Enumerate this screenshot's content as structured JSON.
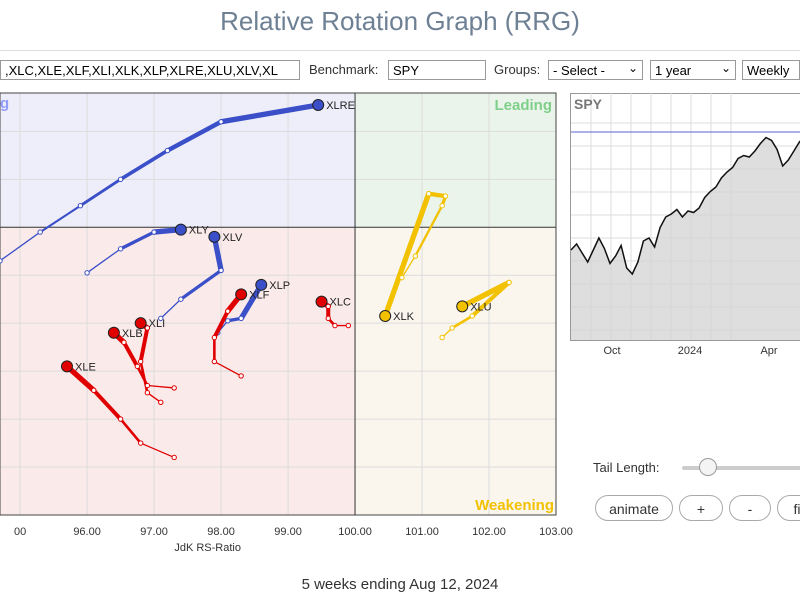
{
  "page": {
    "title": "Relative Rotation Graph (RRG)",
    "footer": "5 weeks ending Aug 12, 2024"
  },
  "controls": {
    "symbols_value": ",XLC,XLE,XLF,XLI,XLK,XLP,XLRE,XLU,XLV,XL",
    "benchmark_label": "Benchmark:",
    "benchmark_value": "SPY",
    "groups_label": "Groups:",
    "groups_value": "- Select -",
    "period_value": "1 year",
    "interval_value": "Weekly",
    "tail_length_label": "Tail Length:",
    "tail_length_fraction": 0.22,
    "animate_label": "animate",
    "plus_label": "+",
    "minus_label": "-",
    "fit_label": "fi"
  },
  "colors": {
    "blue": "#3a4fc8",
    "red": "#e00000",
    "yellow": "#f2c100",
    "leading_text": "#7fcf8a",
    "weakening_text": "#f2c100",
    "lagging_text": "#8f9bff"
  },
  "chart_data": [
    {
      "type": "scatter",
      "xlabel": "JdK RS-Ratio",
      "ylabel": "",
      "x_ticks": [
        "00",
        "96.00",
        "97.00",
        "98.00",
        "99.00",
        "100.00",
        "101.00",
        "102.00",
        "103.00"
      ],
      "xlim": [
        94.7,
        103.0
      ],
      "ylim": [
        94.0,
        102.8
      ],
      "quadrants": {
        "leading": "Leading",
        "weakening": "Weakening",
        "lagging": "g"
      },
      "series": [
        {
          "name": "XLRE",
          "color": "blue",
          "points": [
            [
              94.7,
              99.3
            ],
            [
              95.3,
              99.9
            ],
            [
              95.9,
              100.45
            ],
            [
              96.5,
              101.0
            ],
            [
              97.2,
              101.6
            ],
            [
              98.0,
              102.2
            ],
            [
              99.45,
              102.55
            ]
          ]
        },
        {
          "name": "XLY",
          "color": "blue",
          "points": [
            [
              96.0,
              99.05
            ],
            [
              96.5,
              99.55
            ],
            [
              97.0,
              99.9
            ],
            [
              97.4,
              99.95
            ]
          ]
        },
        {
          "name": "XLV",
          "color": "blue",
          "points": [
            [
              97.1,
              98.1
            ],
            [
              97.4,
              98.5
            ],
            [
              98.0,
              99.1
            ],
            [
              97.9,
              99.8
            ]
          ]
        },
        {
          "name": "XLP",
          "color": "blue",
          "points": [
            [
              97.95,
              97.8
            ],
            [
              98.1,
              98.05
            ],
            [
              98.3,
              98.1
            ],
            [
              98.6,
              98.8
            ]
          ]
        },
        {
          "name": "XLF",
          "color": "red",
          "points": [
            [
              98.3,
              96.9
            ],
            [
              97.9,
              97.2
            ],
            [
              97.9,
              97.7
            ],
            [
              98.1,
              98.25
            ],
            [
              98.3,
              98.6
            ]
          ]
        },
        {
          "name": "XLC",
          "color": "red",
          "points": [
            [
              99.9,
              97.95
            ],
            [
              99.7,
              97.95
            ],
            [
              99.6,
              98.1
            ],
            [
              99.6,
              98.35
            ],
            [
              99.5,
              98.45
            ]
          ]
        },
        {
          "name": "XLI",
          "color": "red",
          "points": [
            [
              97.1,
              96.35
            ],
            [
              96.9,
              96.55
            ],
            [
              96.8,
              97.2
            ],
            [
              96.9,
              97.9
            ],
            [
              96.8,
              98.0
            ]
          ]
        },
        {
          "name": "XLB",
          "color": "red",
          "points": [
            [
              97.3,
              96.65
            ],
            [
              96.9,
              96.7
            ],
            [
              96.75,
              97.1
            ],
            [
              96.55,
              97.6
            ],
            [
              96.4,
              97.8
            ]
          ]
        },
        {
          "name": "XLE",
          "color": "red",
          "points": [
            [
              97.3,
              95.2
            ],
            [
              96.8,
              95.5
            ],
            [
              96.5,
              96.0
            ],
            [
              96.1,
              96.6
            ],
            [
              95.7,
              97.1
            ]
          ]
        },
        {
          "name": "XLK",
          "color": "yellow",
          "points": [
            [
              100.7,
              98.95
            ],
            [
              100.9,
              99.4
            ],
            [
              101.3,
              100.45
            ],
            [
              101.35,
              100.65
            ],
            [
              101.1,
              100.7
            ],
            [
              100.45,
              98.15
            ]
          ]
        },
        {
          "name": "XLU",
          "color": "yellow",
          "points": [
            [
              101.3,
              97.7
            ],
            [
              101.45,
              97.9
            ],
            [
              101.75,
              98.15
            ],
            [
              102.3,
              98.85
            ],
            [
              101.6,
              98.35
            ]
          ]
        }
      ]
    },
    {
      "type": "area",
      "title": "SPY",
      "x_ticks": [
        "Oct",
        "2024",
        "Apr"
      ],
      "values": [
        0.22,
        0.26,
        0.2,
        0.14,
        0.22,
        0.3,
        0.23,
        0.13,
        0.18,
        0.25,
        0.1,
        0.06,
        0.14,
        0.28,
        0.3,
        0.24,
        0.37,
        0.44,
        0.46,
        0.49,
        0.44,
        0.48,
        0.47,
        0.5,
        0.57,
        0.61,
        0.64,
        0.7,
        0.74,
        0.77,
        0.83,
        0.85,
        0.84,
        0.88,
        0.93,
        0.97,
        0.95,
        0.89,
        0.78,
        0.82,
        0.88,
        0.94,
        0.98
      ],
      "reference_line": 1.0
    }
  ]
}
